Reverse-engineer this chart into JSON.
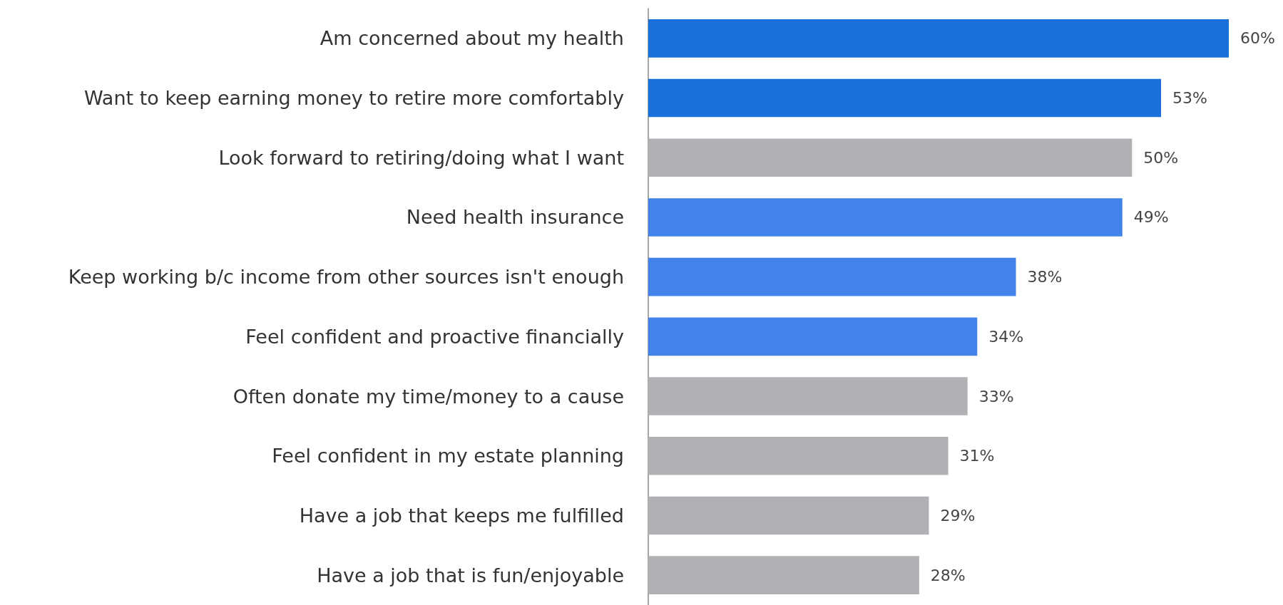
{
  "chart_data": {
    "type": "bar",
    "orientation": "horizontal",
    "categories": [
      "Am concerned about my health",
      "Want to keep earning money to retire more comfortably",
      "Look forward to retiring/doing what I want",
      "Need health insurance",
      "Keep working b/c income from other sources isn't enough",
      "Feel confident and proactive financially",
      "Often donate my time/money to a cause",
      "Feel confident in my estate planning",
      "Have a job that keeps me fulfilled",
      "Have a job that is fun/enjoyable"
    ],
    "values": [
      60,
      53,
      50,
      49,
      38,
      34,
      33,
      31,
      29,
      28
    ],
    "colors": [
      "#1a6fd9",
      "#1a6fd9",
      "#b0b1b5",
      "#4283ea",
      "#4283ea",
      "#4283ea",
      "#b0b1b5",
      "#b0b1b5",
      "#b0b1b5",
      "#b0b1b5"
    ],
    "value_labels": [
      "60%",
      "53%",
      "50%",
      "49%",
      "38%",
      "34%",
      "33%",
      "31%",
      "29%",
      "28%"
    ]
  }
}
